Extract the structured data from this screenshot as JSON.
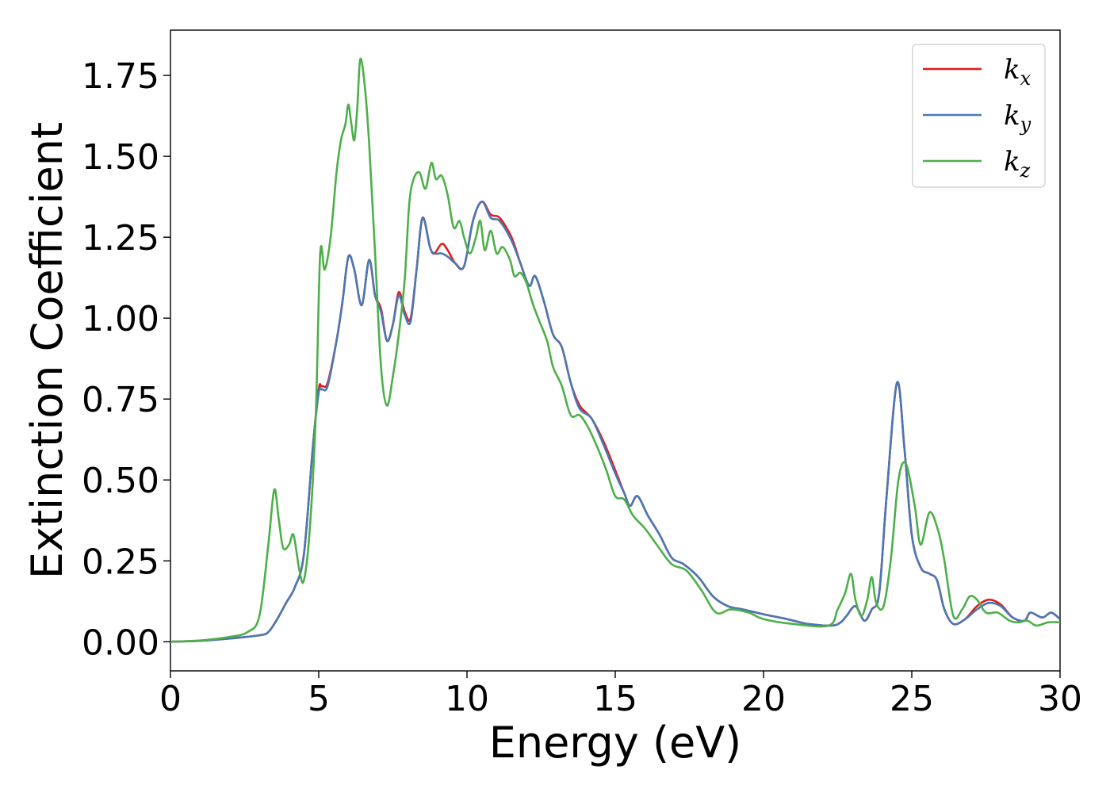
{
  "chart_data": {
    "type": "line",
    "title": "",
    "xlabel": "Energy (eV)",
    "ylabel": "Extinction Coefficient",
    "xlim": [
      0,
      30
    ],
    "ylim": [
      -0.09,
      1.89
    ],
    "xticks": [
      0,
      5,
      10,
      15,
      20,
      25,
      30
    ],
    "xtick_labels": [
      "0",
      "5",
      "10",
      "15",
      "20",
      "25",
      "30"
    ],
    "yticks": [
      0,
      0.25,
      0.5,
      0.75,
      1.0,
      1.25,
      1.5,
      1.75
    ],
    "ytick_labels": [
      "0.00",
      "0.25",
      "0.50",
      "0.75",
      "1.00",
      "1.25",
      "1.50",
      "1.75"
    ],
    "grid": false,
    "legend_position": "top-right",
    "series": [
      {
        "name": "k_x",
        "label_base": "k",
        "label_sub": "x",
        "color": "#e41a1c",
        "points": [
          [
            0,
            0
          ],
          [
            1,
            0.003
          ],
          [
            2,
            0.01
          ],
          [
            3,
            0.02
          ],
          [
            3.3,
            0.03
          ],
          [
            3.6,
            0.07
          ],
          [
            3.9,
            0.12
          ],
          [
            4.2,
            0.17
          ],
          [
            4.5,
            0.27
          ],
          [
            4.8,
            0.6
          ],
          [
            5.0,
            0.78
          ],
          [
            5.1,
            0.79
          ],
          [
            5.3,
            0.8
          ],
          [
            5.6,
            0.93
          ],
          [
            5.8,
            1.05
          ],
          [
            6.0,
            1.19
          ],
          [
            6.2,
            1.15
          ],
          [
            6.45,
            1.04
          ],
          [
            6.7,
            1.18
          ],
          [
            6.9,
            1.07
          ],
          [
            7.1,
            1.03
          ],
          [
            7.3,
            0.93
          ],
          [
            7.5,
            0.98
          ],
          [
            7.7,
            1.08
          ],
          [
            7.9,
            1.02
          ],
          [
            8.1,
            1.0
          ],
          [
            8.3,
            1.15
          ],
          [
            8.5,
            1.31
          ],
          [
            8.75,
            1.22
          ],
          [
            8.9,
            1.2
          ],
          [
            9.15,
            1.23
          ],
          [
            9.35,
            1.21
          ],
          [
            9.6,
            1.17
          ],
          [
            9.9,
            1.16
          ],
          [
            10.2,
            1.3
          ],
          [
            10.5,
            1.36
          ],
          [
            10.8,
            1.32
          ],
          [
            11.1,
            1.31
          ],
          [
            11.5,
            1.25
          ],
          [
            11.8,
            1.17
          ],
          [
            12.1,
            1.1
          ],
          [
            12.3,
            1.13
          ],
          [
            12.6,
            1.05
          ],
          [
            12.9,
            0.95
          ],
          [
            13.2,
            0.91
          ],
          [
            13.5,
            0.8
          ],
          [
            13.8,
            0.73
          ],
          [
            14.2,
            0.69
          ],
          [
            14.6,
            0.62
          ],
          [
            15.0,
            0.53
          ],
          [
            15.3,
            0.46
          ],
          [
            15.5,
            0.42
          ],
          [
            15.75,
            0.45
          ],
          [
            16.1,
            0.39
          ],
          [
            16.5,
            0.33
          ],
          [
            16.9,
            0.26
          ],
          [
            17.3,
            0.24
          ],
          [
            17.8,
            0.2
          ],
          [
            18.3,
            0.14
          ],
          [
            18.8,
            0.11
          ],
          [
            19.3,
            0.1
          ],
          [
            20.0,
            0.085
          ],
          [
            20.8,
            0.07
          ],
          [
            21.5,
            0.055
          ],
          [
            22.3,
            0.05
          ],
          [
            22.6,
            0.06
          ],
          [
            22.8,
            0.08
          ],
          [
            23.1,
            0.11
          ],
          [
            23.4,
            0.065
          ],
          [
            23.65,
            0.1
          ],
          [
            23.9,
            0.15
          ],
          [
            24.15,
            0.45
          ],
          [
            24.5,
            0.8
          ],
          [
            24.75,
            0.6
          ],
          [
            25.0,
            0.33
          ],
          [
            25.3,
            0.23
          ],
          [
            25.6,
            0.21
          ],
          [
            25.85,
            0.19
          ],
          [
            26.1,
            0.1
          ],
          [
            26.4,
            0.055
          ],
          [
            26.8,
            0.07
          ],
          [
            27.2,
            0.11
          ],
          [
            27.6,
            0.13
          ],
          [
            28.0,
            0.115
          ],
          [
            28.4,
            0.075
          ],
          [
            28.8,
            0.065
          ],
          [
            29.0,
            0.09
          ],
          [
            29.4,
            0.075
          ],
          [
            29.7,
            0.09
          ],
          [
            30,
            0.07
          ]
        ]
      },
      {
        "name": "k_y",
        "label_base": "k",
        "label_sub": "y",
        "color": "#4a78b4",
        "points": [
          [
            0,
            0
          ],
          [
            1,
            0.003
          ],
          [
            2,
            0.01
          ],
          [
            3,
            0.02
          ],
          [
            3.3,
            0.03
          ],
          [
            3.6,
            0.07
          ],
          [
            3.9,
            0.12
          ],
          [
            4.2,
            0.17
          ],
          [
            4.5,
            0.27
          ],
          [
            4.8,
            0.6
          ],
          [
            5.0,
            0.77
          ],
          [
            5.1,
            0.78
          ],
          [
            5.3,
            0.79
          ],
          [
            5.6,
            0.93
          ],
          [
            5.8,
            1.05
          ],
          [
            6.0,
            1.19
          ],
          [
            6.2,
            1.15
          ],
          [
            6.45,
            1.04
          ],
          [
            6.7,
            1.18
          ],
          [
            6.9,
            1.07
          ],
          [
            7.1,
            1.02
          ],
          [
            7.3,
            0.93
          ],
          [
            7.5,
            0.98
          ],
          [
            7.7,
            1.07
          ],
          [
            7.9,
            1.01
          ],
          [
            8.1,
            0.99
          ],
          [
            8.3,
            1.15
          ],
          [
            8.5,
            1.31
          ],
          [
            8.75,
            1.22
          ],
          [
            8.9,
            1.2
          ],
          [
            9.15,
            1.2
          ],
          [
            9.35,
            1.19
          ],
          [
            9.6,
            1.17
          ],
          [
            9.9,
            1.16
          ],
          [
            10.2,
            1.3
          ],
          [
            10.5,
            1.36
          ],
          [
            10.8,
            1.31
          ],
          [
            11.1,
            1.3
          ],
          [
            11.5,
            1.24
          ],
          [
            11.8,
            1.17
          ],
          [
            12.1,
            1.1
          ],
          [
            12.3,
            1.13
          ],
          [
            12.6,
            1.05
          ],
          [
            12.9,
            0.95
          ],
          [
            13.2,
            0.91
          ],
          [
            13.5,
            0.8
          ],
          [
            13.8,
            0.72
          ],
          [
            14.2,
            0.69
          ],
          [
            14.6,
            0.61
          ],
          [
            15.0,
            0.52
          ],
          [
            15.3,
            0.46
          ],
          [
            15.5,
            0.42
          ],
          [
            15.75,
            0.45
          ],
          [
            16.1,
            0.39
          ],
          [
            16.5,
            0.33
          ],
          [
            16.9,
            0.26
          ],
          [
            17.3,
            0.24
          ],
          [
            17.8,
            0.2
          ],
          [
            18.3,
            0.14
          ],
          [
            18.8,
            0.11
          ],
          [
            19.3,
            0.1
          ],
          [
            20.0,
            0.085
          ],
          [
            20.8,
            0.07
          ],
          [
            21.5,
            0.055
          ],
          [
            22.3,
            0.05
          ],
          [
            22.6,
            0.06
          ],
          [
            22.8,
            0.08
          ],
          [
            23.1,
            0.11
          ],
          [
            23.4,
            0.065
          ],
          [
            23.65,
            0.1
          ],
          [
            23.9,
            0.15
          ],
          [
            24.15,
            0.45
          ],
          [
            24.5,
            0.8
          ],
          [
            24.75,
            0.6
          ],
          [
            25.0,
            0.33
          ],
          [
            25.3,
            0.23
          ],
          [
            25.6,
            0.21
          ],
          [
            25.85,
            0.19
          ],
          [
            26.1,
            0.1
          ],
          [
            26.4,
            0.055
          ],
          [
            26.8,
            0.07
          ],
          [
            27.2,
            0.1
          ],
          [
            27.6,
            0.12
          ],
          [
            28.0,
            0.11
          ],
          [
            28.4,
            0.075
          ],
          [
            28.8,
            0.065
          ],
          [
            29.0,
            0.09
          ],
          [
            29.4,
            0.075
          ],
          [
            29.7,
            0.09
          ],
          [
            30,
            0.07
          ]
        ]
      },
      {
        "name": "k_z",
        "label_base": "k",
        "label_sub": "z",
        "color": "#4daf4a",
        "points": [
          [
            0,
            0
          ],
          [
            1,
            0.004
          ],
          [
            2,
            0.015
          ],
          [
            2.6,
            0.03
          ],
          [
            3.0,
            0.08
          ],
          [
            3.3,
            0.3
          ],
          [
            3.5,
            0.47
          ],
          [
            3.65,
            0.38
          ],
          [
            3.8,
            0.29
          ],
          [
            4.0,
            0.3
          ],
          [
            4.15,
            0.33
          ],
          [
            4.35,
            0.22
          ],
          [
            4.5,
            0.19
          ],
          [
            4.7,
            0.35
          ],
          [
            4.9,
            0.7
          ],
          [
            5.05,
            1.2
          ],
          [
            5.2,
            1.15
          ],
          [
            5.4,
            1.25
          ],
          [
            5.6,
            1.45
          ],
          [
            5.75,
            1.55
          ],
          [
            5.9,
            1.6
          ],
          [
            6.0,
            1.66
          ],
          [
            6.1,
            1.6
          ],
          [
            6.2,
            1.55
          ],
          [
            6.3,
            1.65
          ],
          [
            6.4,
            1.8
          ],
          [
            6.55,
            1.72
          ],
          [
            6.7,
            1.54
          ],
          [
            6.9,
            1.2
          ],
          [
            7.1,
            0.85
          ],
          [
            7.3,
            0.73
          ],
          [
            7.5,
            0.82
          ],
          [
            7.7,
            0.95
          ],
          [
            7.9,
            1.12
          ],
          [
            8.05,
            1.35
          ],
          [
            8.2,
            1.43
          ],
          [
            8.4,
            1.45
          ],
          [
            8.6,
            1.4
          ],
          [
            8.8,
            1.48
          ],
          [
            8.95,
            1.43
          ],
          [
            9.15,
            1.44
          ],
          [
            9.35,
            1.38
          ],
          [
            9.55,
            1.28
          ],
          [
            9.75,
            1.3
          ],
          [
            9.9,
            1.25
          ],
          [
            10.1,
            1.2
          ],
          [
            10.3,
            1.25
          ],
          [
            10.45,
            1.3
          ],
          [
            10.6,
            1.21
          ],
          [
            10.8,
            1.27
          ],
          [
            11.0,
            1.2
          ],
          [
            11.2,
            1.22
          ],
          [
            11.45,
            1.18
          ],
          [
            11.6,
            1.13
          ],
          [
            11.8,
            1.14
          ],
          [
            12.0,
            1.11
          ],
          [
            12.2,
            1.05
          ],
          [
            12.4,
            1.0
          ],
          [
            12.7,
            0.93
          ],
          [
            12.9,
            0.85
          ],
          [
            13.2,
            0.79
          ],
          [
            13.5,
            0.7
          ],
          [
            13.8,
            0.7
          ],
          [
            14.1,
            0.66
          ],
          [
            14.4,
            0.6
          ],
          [
            14.7,
            0.53
          ],
          [
            15.0,
            0.45
          ],
          [
            15.3,
            0.44
          ],
          [
            15.6,
            0.39
          ],
          [
            16.0,
            0.35
          ],
          [
            16.4,
            0.3
          ],
          [
            16.9,
            0.24
          ],
          [
            17.4,
            0.22
          ],
          [
            17.9,
            0.16
          ],
          [
            18.4,
            0.09
          ],
          [
            18.9,
            0.1
          ],
          [
            19.5,
            0.09
          ],
          [
            20.0,
            0.07
          ],
          [
            21.0,
            0.055
          ],
          [
            22.2,
            0.05
          ],
          [
            22.5,
            0.1
          ],
          [
            22.75,
            0.15
          ],
          [
            22.95,
            0.21
          ],
          [
            23.1,
            0.13
          ],
          [
            23.3,
            0.08
          ],
          [
            23.5,
            0.13
          ],
          [
            23.65,
            0.2
          ],
          [
            23.8,
            0.12
          ],
          [
            24.05,
            0.11
          ],
          [
            24.3,
            0.26
          ],
          [
            24.55,
            0.5
          ],
          [
            24.8,
            0.55
          ],
          [
            25.1,
            0.42
          ],
          [
            25.3,
            0.3
          ],
          [
            25.6,
            0.4
          ],
          [
            25.9,
            0.34
          ],
          [
            26.1,
            0.25
          ],
          [
            26.4,
            0.08
          ],
          [
            26.7,
            0.1
          ],
          [
            26.95,
            0.14
          ],
          [
            27.2,
            0.13
          ],
          [
            27.5,
            0.09
          ],
          [
            27.9,
            0.09
          ],
          [
            28.3,
            0.065
          ],
          [
            28.6,
            0.06
          ],
          [
            28.9,
            0.065
          ],
          [
            29.2,
            0.05
          ],
          [
            29.6,
            0.06
          ],
          [
            30,
            0.06
          ]
        ]
      }
    ]
  }
}
